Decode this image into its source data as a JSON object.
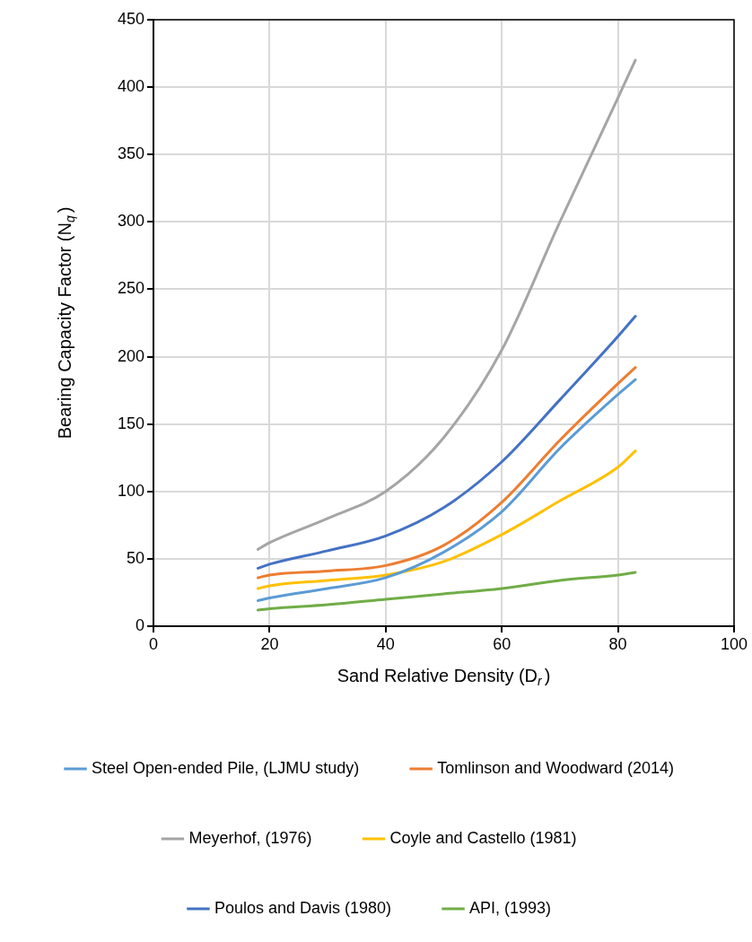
{
  "chart_data": {
    "type": "line",
    "xlabel": "Sand Relative Density (D$_{r}$)",
    "ylabel": "Bearing Capacity Factor (N$_{q}$)",
    "x": [
      18,
      20,
      30,
      40,
      50,
      60,
      70,
      80,
      83
    ],
    "series": [
      {
        "name": "Steel Open-ended Pile, (LJMU study)",
        "color": "#5b9bd5",
        "values": [
          19,
          21,
          28,
          36,
          55,
          85,
          132,
          172,
          183
        ]
      },
      {
        "name": "Tomlinson and Woodward (2014)",
        "color": "#ed7d31",
        "values": [
          36,
          38,
          41,
          45,
          60,
          92,
          138,
          180,
          192
        ]
      },
      {
        "name": "Meyerhof, (1976)",
        "color": "#a5a5a5",
        "values": [
          57,
          62,
          80,
          100,
          140,
          205,
          300,
          392,
          420
        ]
      },
      {
        "name": "Coyle and Castello (1981)",
        "color": "#ffc000",
        "values": [
          28,
          30,
          34,
          38,
          48,
          68,
          93,
          118,
          130
        ]
      },
      {
        "name": "Poulos and Davis (1980)",
        "color": "#4472c4",
        "values": [
          43,
          46,
          56,
          67,
          88,
          122,
          168,
          215,
          230
        ]
      },
      {
        "name": "API, (1993)",
        "color": "#70ad47",
        "values": [
          12,
          13,
          16,
          20,
          24,
          28,
          34,
          38,
          40
        ]
      }
    ],
    "xlim": [
      0,
      100
    ],
    "xticks": [
      0,
      20,
      40,
      60,
      80,
      100
    ],
    "ylim": [
      0,
      450
    ],
    "yticks": [
      0,
      50,
      100,
      150,
      200,
      250,
      300,
      350,
      400,
      450
    ],
    "grid": true,
    "legend": "bottom",
    "marker": "none",
    "line_style": "solid"
  }
}
